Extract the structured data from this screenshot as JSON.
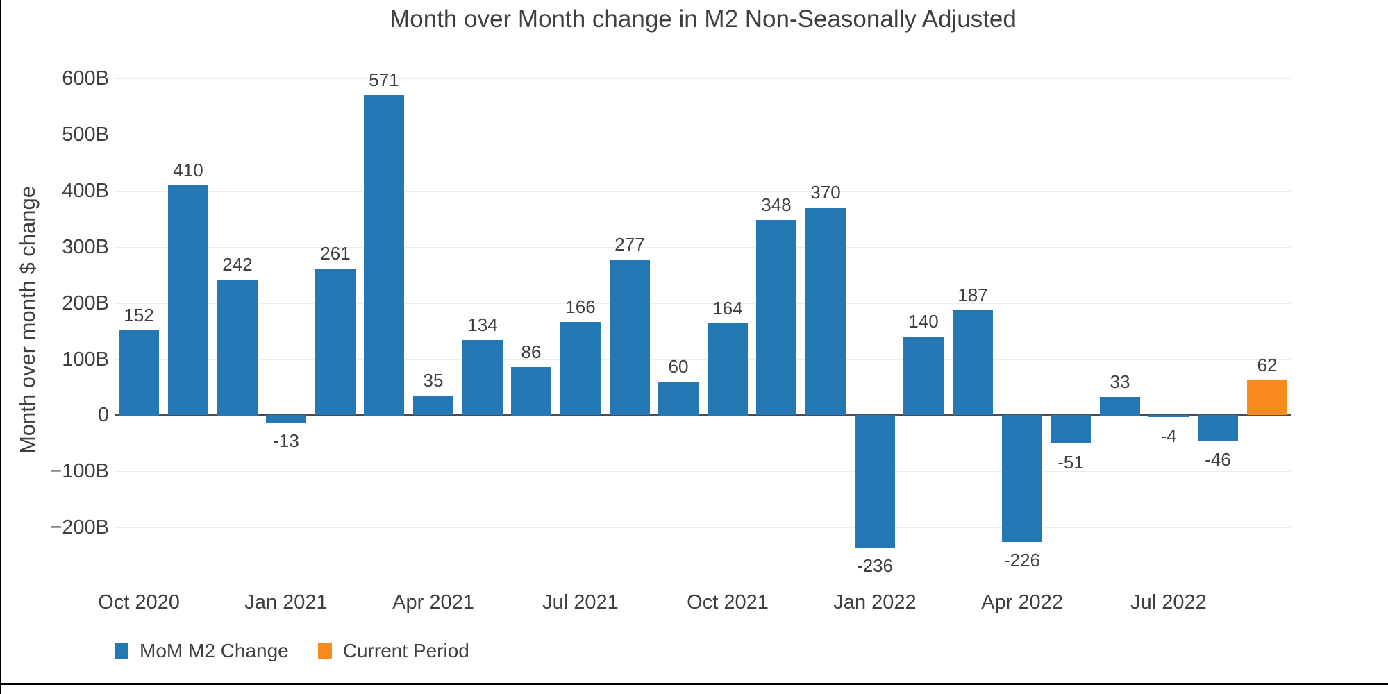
{
  "chart_data": {
    "type": "bar",
    "title": "Month over Month change in M2 Non-Seasonally Adjusted",
    "xlabel": "",
    "ylabel": "Month over month $ change",
    "values": [
      152,
      410,
      242,
      -13,
      261,
      571,
      35,
      134,
      86,
      166,
      277,
      60,
      164,
      348,
      370,
      -236,
      140,
      187,
      -226,
      -51,
      33,
      -4,
      -46,
      62
    ],
    "bar_labels": [
      "152",
      "410",
      "242",
      "-13",
      "261",
      "571",
      "35",
      "134",
      "86",
      "166",
      "277",
      "60",
      "164",
      "348",
      "370",
      "-236",
      "140",
      "187",
      "-226",
      "-51",
      "33",
      "-4",
      "-46",
      "62"
    ],
    "bar_color": "#2478B4",
    "highlight": {
      "index": 23,
      "name": "Current Period",
      "color": "#F98A1D"
    },
    "x_ticks": [
      {
        "index": 0,
        "label": "Oct 2020"
      },
      {
        "index": 3,
        "label": "Jan 2021"
      },
      {
        "index": 6,
        "label": "Apr 2021"
      },
      {
        "index": 9,
        "label": "Jul 2021"
      },
      {
        "index": 12,
        "label": "Oct 2021"
      },
      {
        "index": 15,
        "label": "Jan 2022"
      },
      {
        "index": 18,
        "label": "Apr 2022"
      },
      {
        "index": 21,
        "label": "Jul 2022"
      }
    ],
    "y_ticks": [
      {
        "value": 600,
        "label": "600B"
      },
      {
        "value": 500,
        "label": "500B"
      },
      {
        "value": 400,
        "label": "400B"
      },
      {
        "value": 300,
        "label": "300B"
      },
      {
        "value": 200,
        "label": "200B"
      },
      {
        "value": 100,
        "label": "100B"
      },
      {
        "value": 0,
        "label": "0"
      },
      {
        "value": -100,
        "label": "−100B"
      },
      {
        "value": -200,
        "label": "−200B"
      }
    ],
    "ylim": [
      -305,
      645
    ],
    "grid": true,
    "legend_position": "bottom-left",
    "legend": [
      {
        "label": "MoM M2 Change",
        "color": "#2478B4"
      },
      {
        "label": "Current Period",
        "color": "#F98A1D"
      }
    ]
  }
}
